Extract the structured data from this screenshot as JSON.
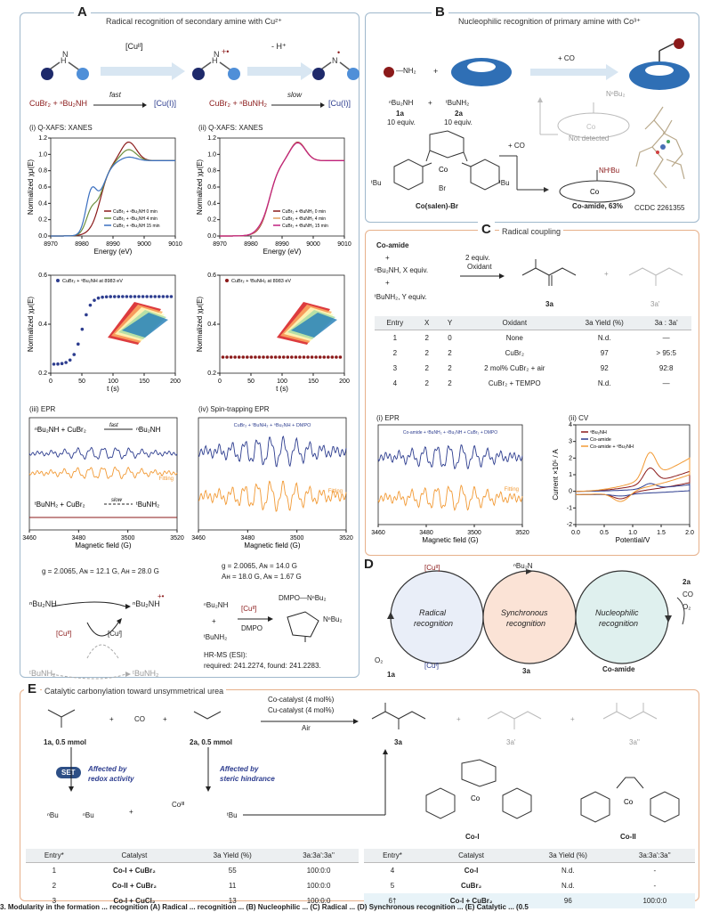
{
  "panelA": {
    "label": "A",
    "title": "Radical recognition of secondary amine with Cu²⁺",
    "reagent1": "[Cuᴵᴵ]",
    "reagent2": "- H⁺",
    "eq1_left": "CuBr₂  +  ⁿBu₂NH",
    "eq1_rate": "fast",
    "eq1_product": "[Cu(I)]",
    "eq2_left": "CuBr₂  +  ⁿBuNH₂",
    "eq2_rate": "slow",
    "eq2_product": "[Cu(I)]",
    "xanes1_title": "(i) Q-XAFS: XANES",
    "xanes2_title": "(ii) Q-XAFS: XANES",
    "xanes_ylabel": "Normalized χμ(E)",
    "xanes_xlabel": "Energy (eV)",
    "xanes_xticks": [
      "8970",
      "8980",
      "8990",
      "9000",
      "9010"
    ],
    "xanes_yticks": [
      "0.0",
      "0.2",
      "0.4",
      "0.6",
      "0.8",
      "1.0",
      "1.2"
    ],
    "legend1": [
      "CuBr₂ + ⁿBu₂NH 0 min",
      "CuBr₂ + ⁿBu₂NH 4 min",
      "CuBr₂ + ⁿBu₂NH 15 min"
    ],
    "legend2": [
      "CuBr₂ + ᵗBuNH₂ 0 min",
      "CuBr₂ + ᵗBuNH₂ 4 min",
      "CuBr₂ + ᵗBuNH₂ 15 min"
    ],
    "kin1_legend": "CuBr₂ + ⁿBu₂NH at 8983 eV",
    "kin2_legend": "CuBr₂ + ᵗBuNH₂ at 8983 eV",
    "kin_ylabel": "Normalized χμ(E)",
    "kin_xlabel": "t (s)",
    "kin_xticks": [
      "0",
      "50",
      "100",
      "150",
      "200"
    ],
    "kin_yticks": [
      "0.2",
      "0.4",
      "0.6"
    ],
    "epr3_title": "(iii) EPR",
    "epr3_eq1": "ⁿBu₂NH + CuBr₂",
    "epr3_eq1_rate": "fast",
    "epr3_eq1_prod": "ⁿBu₂NH",
    "epr3_fitting": "Fitting",
    "epr3_eq2": "ᵗBuNH₂ + CuBr₂",
    "epr3_eq2_rate": "slow",
    "epr3_eq2_prod": "ᵗBuNH₂",
    "epr_xlabel": "Magnetic field (G)",
    "epr_xticks": [
      "3460",
      "3480",
      "3500",
      "3520"
    ],
    "epr3_params": "g = 2.0065, Aɴ = 12.1 G, Aʜ = 28.0 G",
    "epr4_title": "(iv) Spin-trapping EPR",
    "epr4_legend": "CuBr₂ + ᵗBuNH₂ + ⁿBu₂NH + DMPO",
    "epr4_fitting": "Fitting",
    "epr4_params1": "g = 2.0065, Aɴ = 14.0 G",
    "epr4_params2": "Aʜ = 18.0 G, Aɴ = 1.67 G",
    "mech_amine": "ⁿBu₂NH",
    "mech_radical": "ⁿBu₂NH",
    "mech_cu2": "[Cuᴵᴵ]",
    "mech_cu1": "[Cuᴵ]",
    "mech_tbu": "ᵗBuNH₂",
    "mech_tbu_rad": "ᵗBuNH₂",
    "trap_amine1": "ⁿBu₂NH",
    "trap_plus": "+",
    "trap_amine2": "ᵗBuNH₂",
    "trap_cu": "[Cuᴵᴵ]",
    "trap_dmpo": "DMPO",
    "trap_product": "DMPO—NⁿBu₂",
    "trap_nbu": "NⁿBu₂",
    "hrms1": "HR-MS (ESI):",
    "hrms2": "required: 241.2274, found: 241.2283."
  },
  "panelB": {
    "label": "B",
    "title": "Nucleophilic recognition of primary amine with Co³⁺",
    "nh2": "—NH₂",
    "co_label": "Co³⁺",
    "plus": "+",
    "arrow_label": "+ CO",
    "amine1": "ⁿBu₂NH",
    "amine1_id": "1a",
    "amine1_eq": "10 equiv.",
    "amine2": "ᵗBuNH₂",
    "amine2_id": "2a",
    "amine2_eq": "10 equiv.",
    "not_detected": "Not detected",
    "nbu2": "NⁿBu₂",
    "plus_co": "+ CO",
    "complex_name": "Co(salen)-Br",
    "nhtbu": "NHᵗBu",
    "co_amide": "Co-amide, 63%",
    "ccdc": "CCDC 2261355",
    "tbu": "ᵗBu",
    "br": "Br"
  },
  "panelC": {
    "label": "C",
    "title": "Radical coupling",
    "reactant1": "Co-amide",
    "plus": "+",
    "reactant2": "ⁿBu₂NH, X equiv.",
    "reactant3": "ᵗBuNH₂, Y equiv.",
    "cond1": "2 equiv.",
    "cond2": "Oxidant",
    "prod1": "3a",
    "prod2": "3a'",
    "table_headers": [
      "Entry",
      "X",
      "Y",
      "Oxidant",
      "3a Yield (%)",
      "3a : 3a'"
    ],
    "table_rows": [
      [
        "1",
        "2",
        "0",
        "None",
        "N.d.",
        "—"
      ],
      [
        "2",
        "2",
        "2",
        "CuBr₂",
        "97",
        "> 95:5"
      ],
      [
        "3",
        "2",
        "2",
        "2 mol% CuBr₂ + air",
        "92",
        "92:8"
      ],
      [
        "4",
        "2",
        "2",
        "CuBr₂ + TEMPO",
        "N.d.",
        "—"
      ]
    ],
    "epr_title": "(i) EPR",
    "epr_legend": "Co-amide + ᵗBuNH₂ + ⁿBu₂NH + CuBr₂ + DMPO",
    "epr_fitting": "Fitting",
    "epr_xlabel": "Magnetic field (G)",
    "epr_xticks": [
      "3460",
      "3480",
      "3500",
      "3520"
    ],
    "cv_title": "(ii) CV",
    "cv_legend": [
      "ⁿBu₂NH",
      "Co-amide",
      "Co-amide + ⁿBu₂NH"
    ],
    "cv_ylabel": "Current ×10⁵ / A",
    "cv_xlabel": "Potential/V",
    "cv_xticks": [
      "0.0",
      "0.5",
      "1.0",
      "1.5",
      "2.0"
    ],
    "cv_yticks": [
      "-2",
      "-1",
      "0",
      "1",
      "2",
      "3",
      "4"
    ]
  },
  "panelD": {
    "label": "D",
    "cycle1_line1": "Radical",
    "cycle1_line2": "recognition",
    "cycle2_line1": "Synchronous",
    "cycle2_line2": "recognition",
    "cycle3_line1": "Nucleophilic",
    "cycle3_line2": "recognition",
    "cu2": "[Cuᴵᴵ]",
    "cu1": "[Cuᴵ]",
    "radical": "ⁿBu₂N",
    "o2_left": "O₂",
    "in_1a": "1a",
    "out_3a": "3a",
    "co_amide": "Co-amide",
    "in_2a": "2a",
    "in_co": "CO",
    "in_o2": "O₂"
  },
  "panelE": {
    "label": "E",
    "title": "Catalytic carbonylation toward unsymmetrical urea",
    "r1_id": "1a, 0.5 mmol",
    "plus": "+",
    "co": "CO",
    "r2_id": "2a, 0.5 mmol",
    "cond1": "Co-catalyst (4 mol%)",
    "cond2": "Cu-catalyst (4 mol%)",
    "cond3": "Air",
    "p1": "3a",
    "p2": "3a'",
    "p3": "3a''",
    "set": "SET",
    "affected1_line1": "Affected by",
    "affected1_line2": "redox activity",
    "affected2_line1": "Affected by",
    "affected2_line2": "steric hindrance",
    "coiii": "Coᴵᴵᴵ",
    "nbu": "ⁿBu",
    "tbu": "ᵗBu",
    "cat1": "Co-I",
    "cat2": "Co-II",
    "table_headers": [
      "Entry*",
      "Catalyst",
      "3a Yield (%)",
      "3a:3a':3a''"
    ],
    "table_left": [
      [
        "1",
        "Co-I + CuBr₂",
        "55",
        "100:0:0"
      ],
      [
        "2",
        "Co-II + CuBr₂",
        "11",
        "100:0:0"
      ],
      [
        "3",
        "Co-I + CuCl₂",
        "13",
        "100:0:0"
      ]
    ],
    "table_right": [
      [
        "4",
        "Co-I",
        "N.d.",
        "-"
      ],
      [
        "5",
        "CuBr₂",
        "N.d.",
        "-"
      ],
      [
        "6†",
        "Co-I + CuBr₂",
        "96",
        "100:0:0"
      ]
    ]
  },
  "caption": "3. Modularity in the formation ... recognition (A) Radical ... recognition ... (B) Nucleophilic ... (C) Radical ... (D) Synchronous recognition ... (E) Catalytic ... (0.5"
}
